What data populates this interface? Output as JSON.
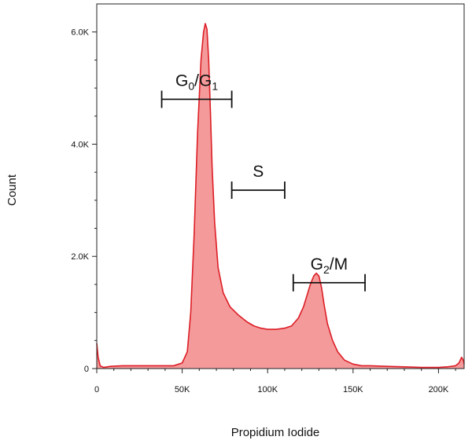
{
  "chart_data": {
    "type": "area",
    "title": "",
    "xlabel": "Propidium Iodide",
    "ylabel": "Count",
    "xlim": [
      0,
      215000
    ],
    "ylim": [
      0,
      6500
    ],
    "grid": false,
    "legend": "none",
    "x_ticks": [
      {
        "value": 0,
        "label": "0"
      },
      {
        "value": 50000,
        "label": "50K"
      },
      {
        "value": 100000,
        "label": "100K"
      },
      {
        "value": 150000,
        "label": "150K"
      },
      {
        "value": 200000,
        "label": "200K"
      }
    ],
    "y_ticks": [
      {
        "value": 0,
        "label": "0"
      },
      {
        "value": 2000,
        "label": "2.0K"
      },
      {
        "value": 4000,
        "label": "4.0K"
      },
      {
        "value": 6000,
        "label": "6.0K"
      }
    ],
    "series": [
      {
        "x": [
          0,
          800,
          2000,
          4000,
          8000,
          15000,
          25000,
          35000,
          45000,
          50000,
          53000,
          55000,
          57000,
          59000,
          61000,
          62500,
          63500,
          64500,
          65500,
          66500,
          67500,
          69000,
          71000,
          74000,
          78000,
          83000,
          88000,
          92000,
          96000,
          100000,
          105000,
          110000,
          114000,
          118000,
          121000,
          123000,
          125000,
          127000,
          128500,
          130000,
          131500,
          133000,
          135000,
          138000,
          141000,
          145000,
          150000,
          155000,
          160000,
          170000,
          180000,
          190000,
          200000,
          205000,
          210000,
          212000,
          213500,
          214500,
          215000
        ],
        "y": [
          450,
          200,
          50,
          20,
          40,
          50,
          50,
          50,
          50,
          100,
          300,
          1000,
          2400,
          4200,
          5500,
          6000,
          6150,
          6050,
          5500,
          4600,
          3600,
          2600,
          1800,
          1350,
          1100,
          950,
          830,
          760,
          720,
          700,
          700,
          720,
          760,
          900,
          1100,
          1300,
          1500,
          1650,
          1700,
          1650,
          1450,
          1150,
          800,
          500,
          300,
          150,
          80,
          50,
          50,
          40,
          30,
          20,
          20,
          30,
          50,
          100,
          200,
          150,
          80
        ]
      }
    ],
    "colors": {
      "fill": "#f49a9a",
      "line": "#dc1e26"
    },
    "gates": [
      {
        "label_main": "G",
        "label_sub1": "0",
        "label_mid": "/G",
        "label_sub2": "1",
        "x_start": 38000,
        "x_end": 79000,
        "y_value": 4800
      },
      {
        "label_main": "S",
        "label_sub1": "",
        "label_mid": "",
        "label_sub2": "",
        "x_start": 79000,
        "x_end": 110000,
        "y_value": 3180
      },
      {
        "label_main": "G",
        "label_sub1": "2",
        "label_mid": "/M",
        "label_sub2": "",
        "x_start": 115000,
        "x_end": 157000,
        "y_value": 1530
      }
    ]
  }
}
